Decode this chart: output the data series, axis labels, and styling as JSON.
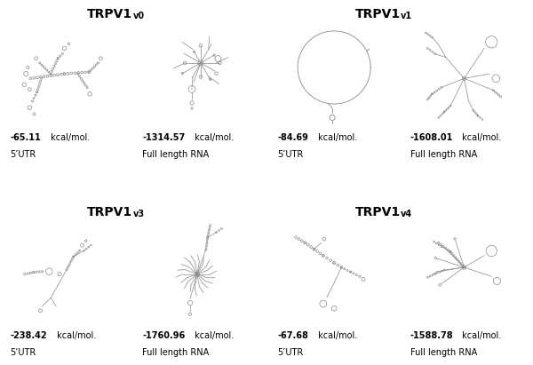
{
  "group_info": [
    {
      "title": "TRPV1",
      "sub": "v0",
      "outer_r": 0,
      "outer_c": 0,
      "panels": [
        {
          "energy": "-65.11",
          "label": "5’UTR"
        },
        {
          "energy": "-1314.57",
          "label": "Full length RNA"
        }
      ]
    },
    {
      "title": "TRPV1",
      "sub": "v1",
      "outer_r": 0,
      "outer_c": 1,
      "panels": [
        {
          "energy": "-84.69",
          "label": "5’UTR"
        },
        {
          "energy": "-1608.01",
          "label": "Full length RNA"
        }
      ]
    },
    {
      "title": "TRPV1",
      "sub": "v3",
      "outer_r": 1,
      "outer_c": 0,
      "panels": [
        {
          "energy": "-238.42",
          "label": "5’UTR"
        },
        {
          "energy": "-1760.96",
          "label": "Full length RNA"
        }
      ]
    },
    {
      "title": "TRPV1",
      "sub": "v4",
      "outer_r": 1,
      "outer_c": 1,
      "panels": [
        {
          "energy": "-67.68",
          "label": "5’UTR"
        },
        {
          "energy": "-1588.78",
          "label": "Full length RNA"
        }
      ]
    }
  ],
  "bg_color": "#ffffff",
  "line_color": "#888888",
  "energy_fontsize": 7,
  "label_fontsize": 7,
  "title_fontsize": 10
}
